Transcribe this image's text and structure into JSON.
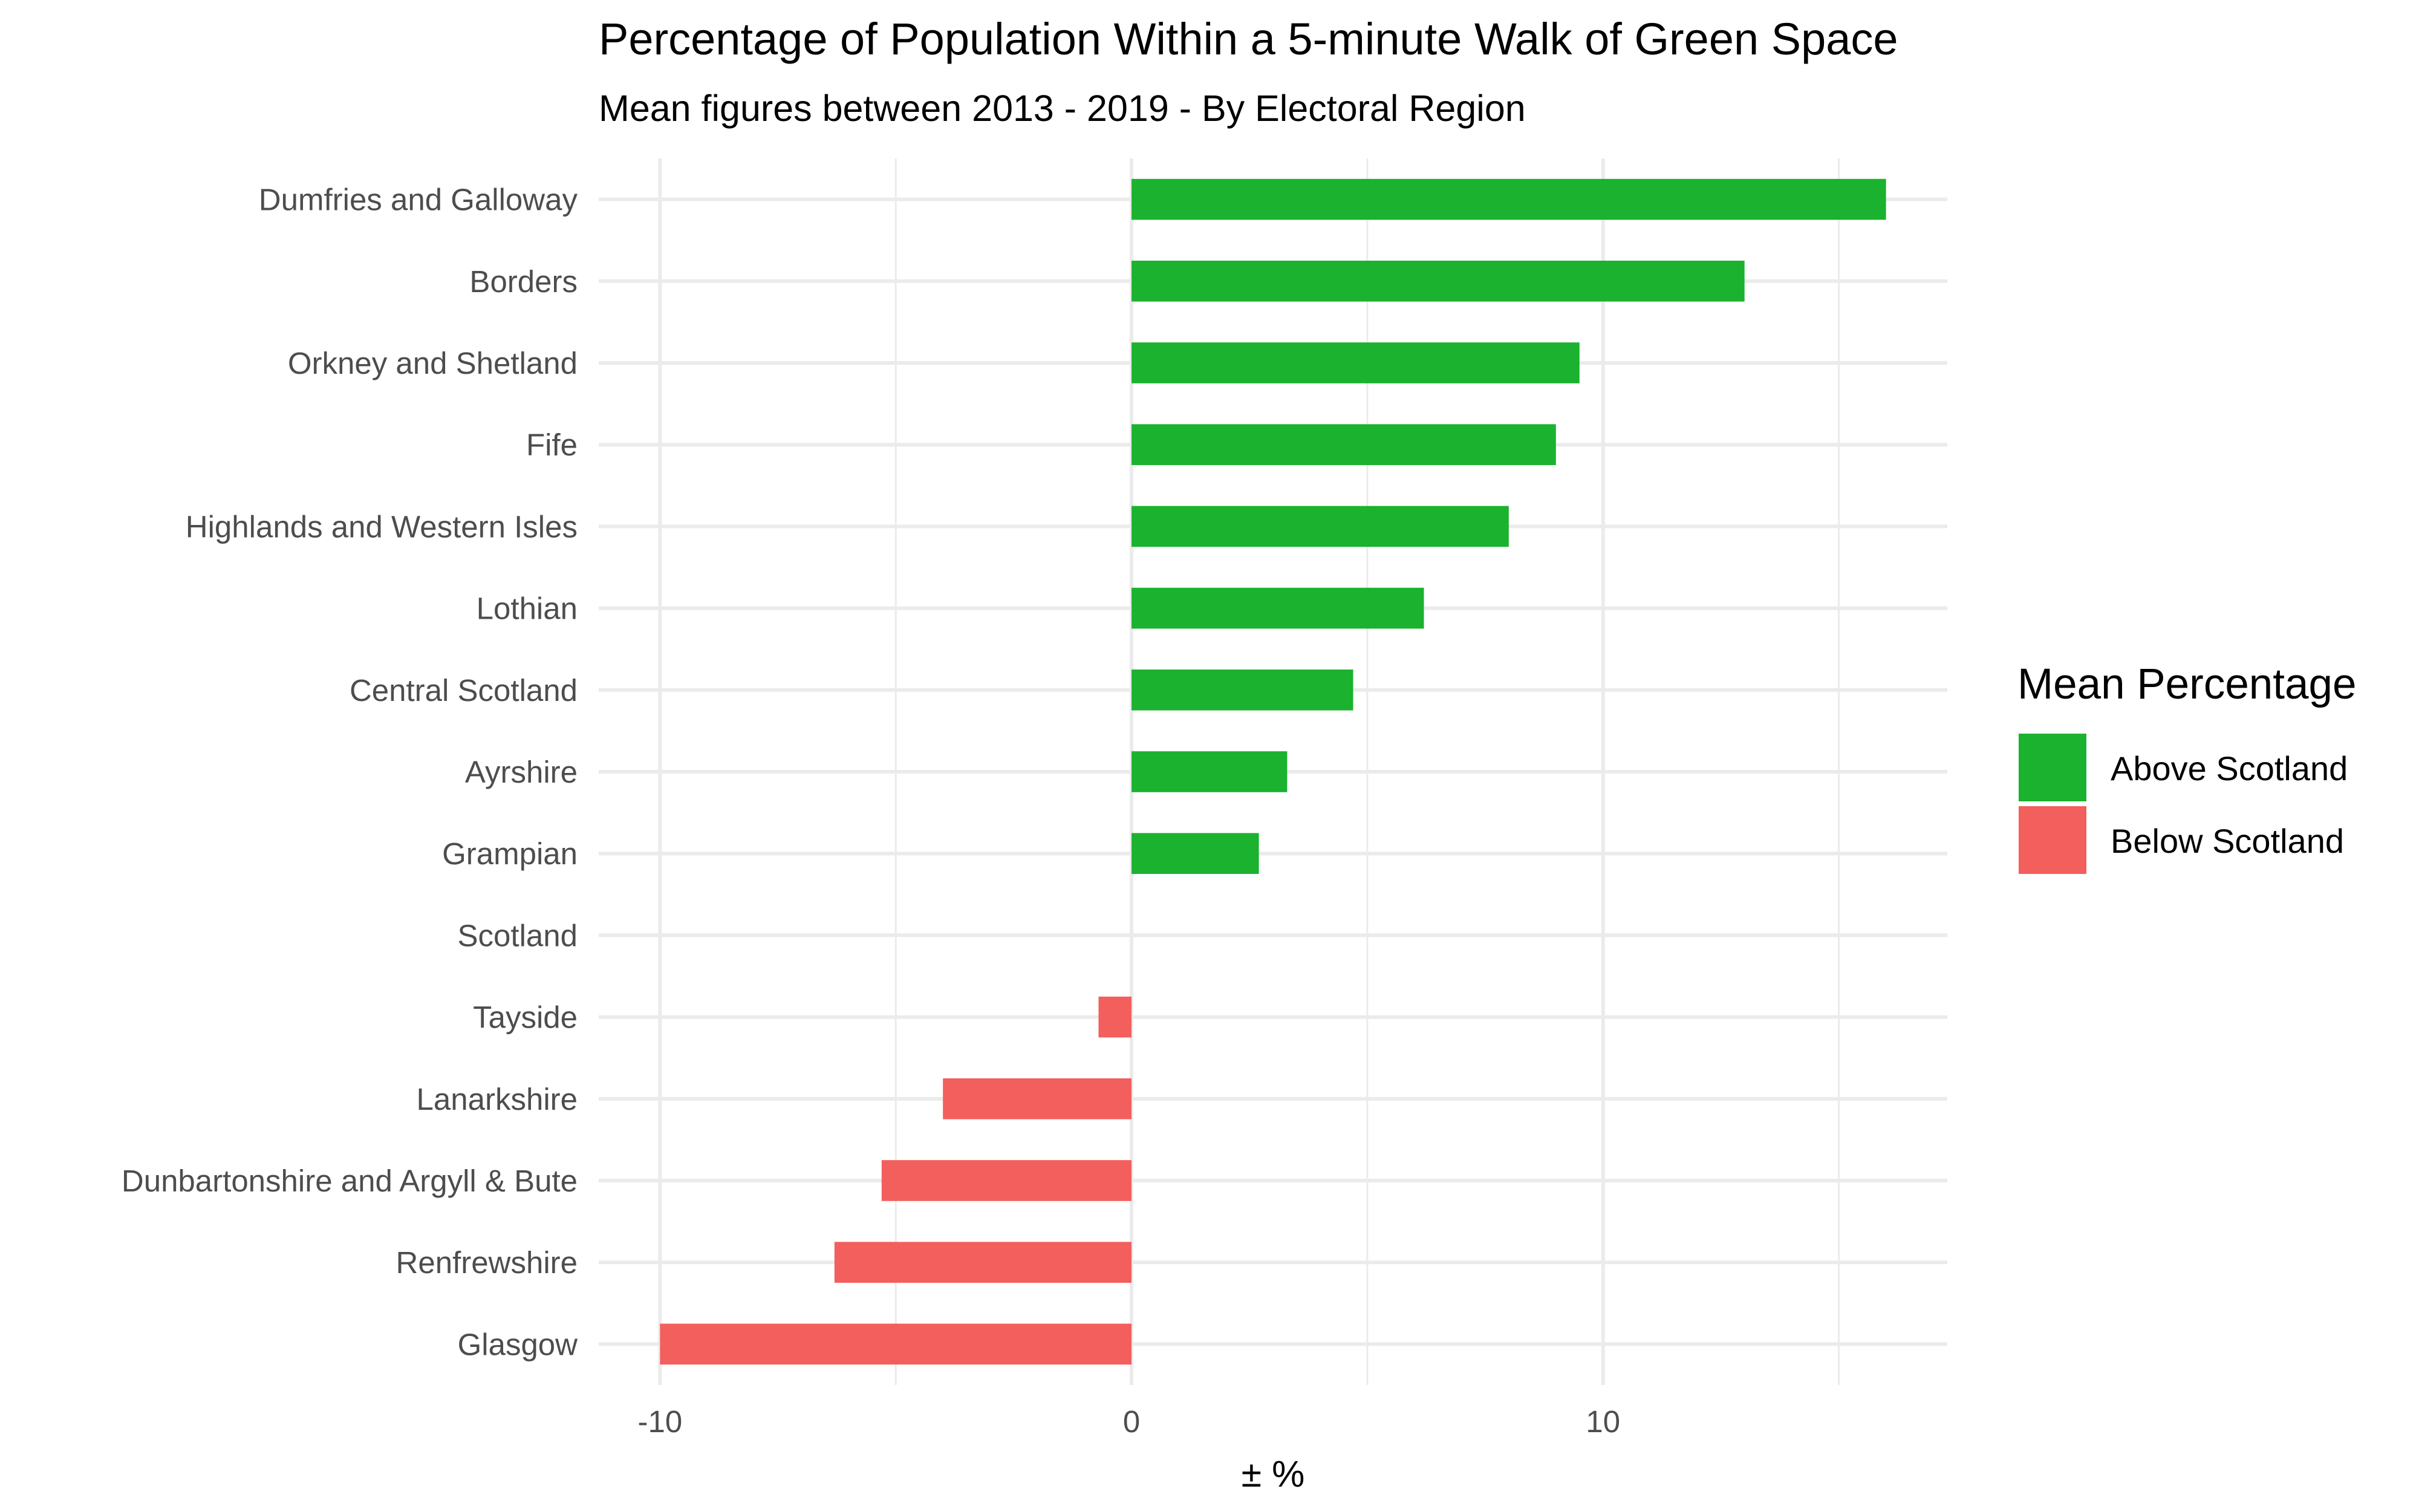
{
  "chart_data": {
    "type": "bar",
    "orientation": "horizontal",
    "title": "Percentage of Population Within a 5-minute Walk of Green Space",
    "subtitle": "Mean figures between 2013 - 2019 - By Electoral Region",
    "xlabel": "± %",
    "ylabel": "",
    "xlim": [
      -11.3,
      17.3
    ],
    "xticks": [
      -10,
      0,
      10
    ],
    "xtick_labels": [
      "-10",
      "0",
      "10"
    ],
    "grid": true,
    "legend": {
      "title": "Mean Percentage",
      "placement": "right",
      "entries": [
        {
          "label": "Above Scotland",
          "color": "#1AB22E"
        },
        {
          "label": "Below Scotland",
          "color": "#F25F5C"
        }
      ]
    },
    "categories": [
      "Dumfries and Galloway",
      "Borders",
      "Orkney and Shetland",
      "Fife",
      "Highlands and Western Isles",
      "Lothian",
      "Central Scotland",
      "Ayrshire",
      "Grampian",
      "Scotland",
      "Tayside",
      "Lanarkshire",
      "Dunbartonshire and Argyll & Bute",
      "Renfrewshire",
      "Glasgow"
    ],
    "values": [
      16.0,
      13.0,
      9.5,
      9.0,
      8.0,
      6.2,
      4.7,
      3.3,
      2.7,
      0,
      -0.7,
      -4.0,
      -5.3,
      -6.3,
      -10.0
    ],
    "groups": [
      "Above Scotland",
      "Above Scotland",
      "Above Scotland",
      "Above Scotland",
      "Above Scotland",
      "Above Scotland",
      "Above Scotland",
      "Above Scotland",
      "Above Scotland",
      "",
      "Below Scotland",
      "Below Scotland",
      "Below Scotland",
      "Below Scotland",
      "Below Scotland"
    ],
    "colors": {
      "Above Scotland": "#1AB22E",
      "Below Scotland": "#F25F5C",
      "grid": "#EBEBEB"
    }
  }
}
